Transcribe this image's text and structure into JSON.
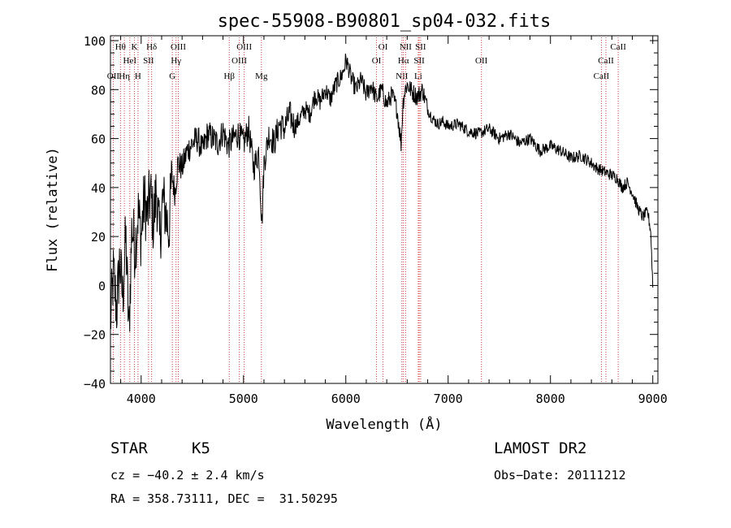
{
  "chart_data": {
    "type": "line",
    "title": "spec-55908-B90801_sp04-032.fits",
    "xlabel": "Wavelength (Å)",
    "ylabel": "Flux (relative)",
    "xlim": [
      3700,
      9050
    ],
    "ylim": [
      -40,
      102
    ],
    "xticks": [
      4000,
      5000,
      6000,
      7000,
      8000,
      9000
    ],
    "yticks": [
      -40,
      -20,
      0,
      20,
      40,
      60,
      80,
      100
    ],
    "grid": false,
    "series": [
      {
        "x": [
          3700,
          3730,
          3760,
          3790,
          3820,
          3850,
          3880,
          3910,
          3940,
          3970,
          4000,
          4030,
          4060,
          4090,
          4120,
          4150,
          4180,
          4210,
          4240,
          4270,
          4300,
          4330,
          4360,
          4400,
          4450,
          4500,
          4550,
          4600,
          4650,
          4700,
          4750,
          4800,
          4850,
          4900,
          4950,
          5000,
          5050,
          5100,
          5150,
          5180,
          5200,
          5250,
          5300,
          5350,
          5400,
          5450,
          5500,
          5550,
          5600,
          5650,
          5700,
          5750,
          5800,
          5850,
          5900,
          5950,
          5980,
          6000,
          6020,
          6050,
          6100,
          6150,
          6200,
          6250,
          6300,
          6350,
          6400,
          6450,
          6500,
          6520,
          6540,
          6560,
          6580,
          6600,
          6650,
          6700,
          6750,
          6800,
          6850,
          6900,
          6950,
          7000,
          7100,
          7200,
          7300,
          7400,
          7500,
          7600,
          7700,
          7800,
          7900,
          8000,
          8100,
          8200,
          8300,
          8400,
          8450,
          8500,
          8550,
          8600,
          8650,
          8700,
          8750,
          8800,
          8850,
          8900,
          8950,
          8980,
          9000
        ],
        "y": [
          -15,
          5,
          -10,
          10,
          -5,
          20,
          -20,
          25,
          15,
          30,
          20,
          35,
          28,
          38,
          25,
          40,
          18,
          35,
          30,
          22,
          45,
          38,
          50,
          48,
          55,
          58,
          60,
          55,
          62,
          60,
          58,
          63,
          57,
          60,
          62,
          58,
          64,
          48,
          55,
          25,
          50,
          62,
          58,
          66,
          64,
          70,
          65,
          68,
          72,
          70,
          78,
          75,
          80,
          76,
          82,
          85,
          88,
          92,
          90,
          85,
          80,
          84,
          78,
          82,
          76,
          80,
          74,
          78,
          72,
          65,
          58,
          75,
          80,
          82,
          79,
          77,
          80,
          72,
          68,
          66,
          67,
          65,
          66,
          63,
          62,
          64,
          60,
          62,
          58,
          60,
          55,
          57,
          55,
          52,
          53,
          50,
          48,
          47,
          46,
          45,
          44,
          40,
          42,
          38,
          32,
          28,
          30,
          22,
          0
        ]
      }
    ],
    "lines": [
      {
        "name": "OII",
        "x": 3727,
        "row": 3
      },
      {
        "name": "Hθ",
        "x": 3798,
        "row": 1
      },
      {
        "name": "Hη",
        "x": 3836,
        "row": 3
      },
      {
        "name": "HeI",
        "x": 3889,
        "row": 2
      },
      {
        "name": "K",
        "x": 3934,
        "row": 1
      },
      {
        "name": "H",
        "x": 3969,
        "row": 3
      },
      {
        "name": "SII",
        "x": 4072,
        "row": 2
      },
      {
        "name": "Hδ",
        "x": 4102,
        "row": 1
      },
      {
        "name": "G",
        "x": 4305,
        "row": 3
      },
      {
        "name": "Hγ",
        "x": 4341,
        "row": 2
      },
      {
        "name": "OIII",
        "x": 4363,
        "row": 1
      },
      {
        "name": "Hβ",
        "x": 4861,
        "row": 3
      },
      {
        "name": "OIII",
        "x": 4959,
        "row": 2
      },
      {
        "name": "OIII",
        "x": 5007,
        "row": 1
      },
      {
        "name": "Mg",
        "x": 5175,
        "row": 3
      },
      {
        "name": "OI",
        "x": 6300,
        "row": 2
      },
      {
        "name": "OI",
        "x": 6364,
        "row": 1
      },
      {
        "name": "NII",
        "x": 6548,
        "row": 3
      },
      {
        "name": "Hα",
        "x": 6563,
        "row": 2
      },
      {
        "name": "NII",
        "x": 6584,
        "row": 1
      },
      {
        "name": "Li",
        "x": 6708,
        "row": 3
      },
      {
        "name": "SII",
        "x": 6717,
        "row": 2
      },
      {
        "name": "SII",
        "x": 6731,
        "row": 1
      },
      {
        "name": "OII",
        "x": 7325,
        "row": 2
      },
      {
        "name": "CaII",
        "x": 8498,
        "row": 3
      },
      {
        "name": "CaII",
        "x": 8542,
        "row": 2
      },
      {
        "name": "CaII",
        "x": 8662,
        "row": 1
      }
    ]
  },
  "footer": {
    "class_label": "STAR",
    "subclass": "K5",
    "survey": "LAMOST DR2",
    "redshift": "cz = −40.2 ± 2.4 km/s",
    "obs_date": "Obs−Date: 20111212",
    "coords": "RA = 358.73111, DEC =  31.50295"
  }
}
